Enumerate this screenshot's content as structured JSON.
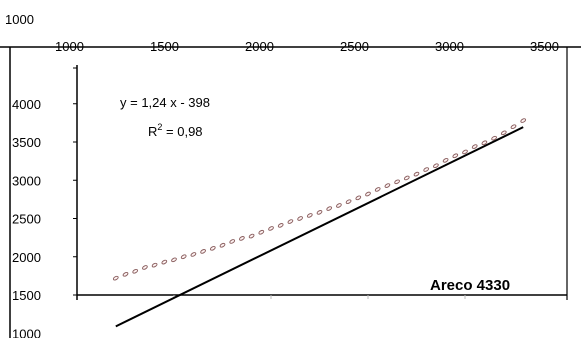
{
  "chart_data": {
    "type": "scatter",
    "title": "",
    "xlabel": "",
    "ylabel": "",
    "stray_label": "1000",
    "xlim": [
      1000,
      3500
    ],
    "ylim": [
      1000,
      4000
    ],
    "x_ticks": [
      1000,
      1500,
      2000,
      2500,
      3000,
      3500
    ],
    "y_ticks": [
      1000,
      1500,
      2000,
      2500,
      3000,
      3500,
      4000
    ],
    "annotation": {
      "equation": "y = 1,24 x - 398",
      "r2_prefix": "R",
      "r2_sup": "2",
      "r2_suffix": " = 0,98",
      "series_name": "Areco 4330"
    },
    "trendline": {
      "slope": 1.24,
      "intercept": -398,
      "x_range": [
        1200,
        3300
      ]
    },
    "series": [
      {
        "x": [
          1200,
          1250,
          1300,
          1350,
          1400,
          1450,
          1500,
          1550,
          1600,
          1650,
          1700,
          1750,
          1800,
          1850,
          1900,
          1950,
          2000,
          2050,
          2100,
          2150,
          2200,
          2250,
          2300,
          2350,
          2400,
          2450,
          2500,
          2550,
          2600,
          2650,
          2700,
          2750,
          2800,
          2850,
          2900,
          2950,
          3000,
          3050,
          3100,
          3150,
          3200,
          3250,
          3300
        ],
        "y": [
          1720,
          1770,
          1810,
          1860,
          1890,
          1930,
          1960,
          2000,
          2030,
          2070,
          2110,
          2150,
          2200,
          2240,
          2270,
          2320,
          2370,
          2410,
          2460,
          2500,
          2540,
          2580,
          2630,
          2670,
          2720,
          2770,
          2820,
          2880,
          2930,
          2980,
          3030,
          3080,
          3140,
          3190,
          3260,
          3320,
          3370,
          3440,
          3490,
          3550,
          3620,
          3700,
          3780
        ]
      }
    ]
  }
}
